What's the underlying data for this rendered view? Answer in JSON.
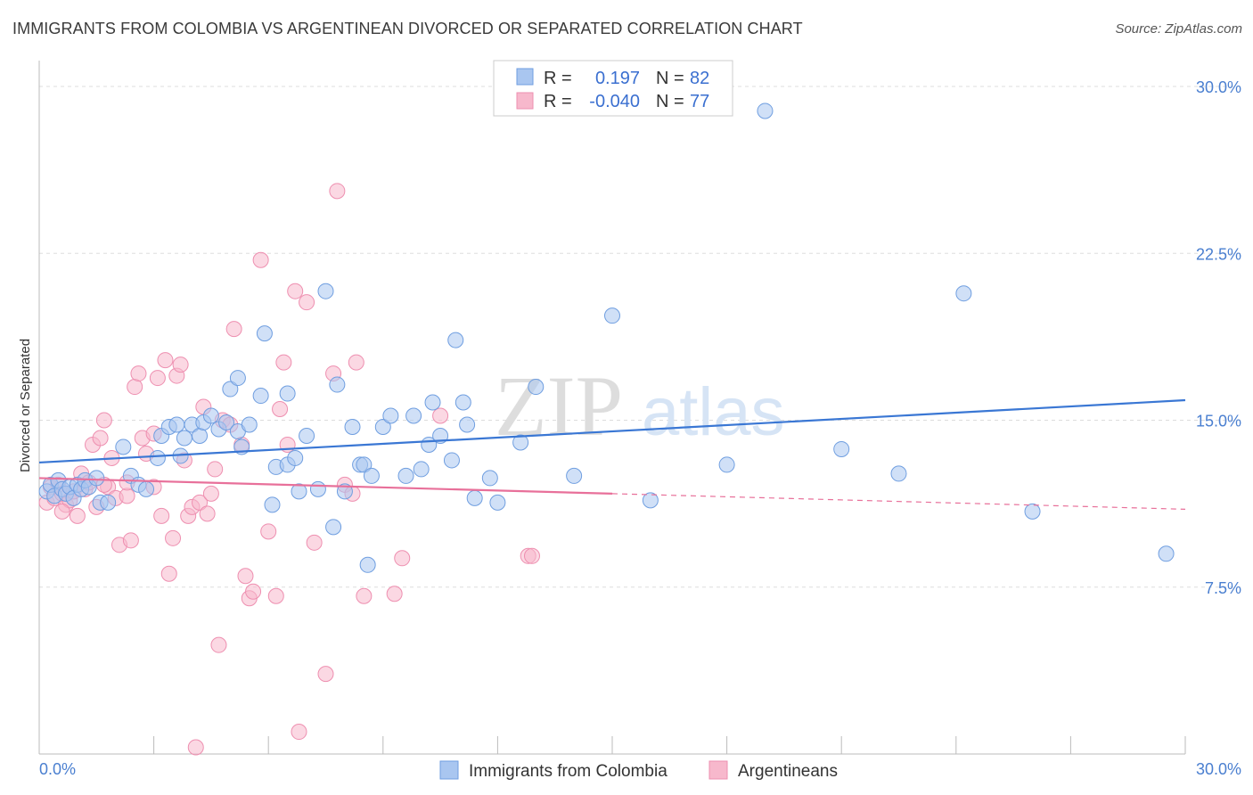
{
  "title": "IMMIGRANTS FROM COLOMBIA VS ARGENTINEAN DIVORCED OR SEPARATED CORRELATION CHART",
  "source": "Source: ZipAtlas.com",
  "watermark": "ZIPatlas",
  "colors": {
    "blue_fill": "#a9c6f0",
    "blue_stroke": "#6f9ee0",
    "blue_line": "#3a77d4",
    "pink_fill": "#f7b8cc",
    "pink_stroke": "#ee8fb0",
    "pink_line": "#e8709a",
    "tick_text": "#4a7fd0",
    "grid": "#dddddd"
  },
  "legend": {
    "r_label": "R =",
    "n_label": "N =",
    "rows": [
      {
        "series": "blue",
        "r": "0.197",
        "n": "82"
      },
      {
        "series": "pink",
        "r": "-0.040",
        "n": "77"
      }
    ]
  },
  "chart_data": {
    "type": "scatter",
    "xlabel": "",
    "ylabel": "Divorced or Separated",
    "xlim": [
      0,
      30
    ],
    "ylim": [
      0,
      30
    ],
    "y_ticks": [
      7.5,
      15.0,
      22.5,
      30.0
    ],
    "y_tick_labels": [
      "7.5%",
      "15.0%",
      "22.5%",
      "30.0%"
    ],
    "x_tick_labels": [
      "0.0%",
      "30.0%"
    ],
    "grid": true,
    "legend_position": "top-center",
    "series": [
      {
        "name": "Immigrants from Colombia",
        "color": "#a9c6f0",
        "trend": {
          "x": [
            0,
            30
          ],
          "y": [
            13.1,
            15.9
          ],
          "extrapolate_from": null
        },
        "points": [
          [
            0.2,
            11.8
          ],
          [
            0.3,
            12.1
          ],
          [
            0.4,
            11.6
          ],
          [
            0.5,
            12.3
          ],
          [
            0.6,
            11.9
          ],
          [
            0.7,
            11.7
          ],
          [
            0.8,
            12.0
          ],
          [
            0.9,
            11.5
          ],
          [
            1.0,
            12.1
          ],
          [
            1.1,
            11.9
          ],
          [
            1.2,
            12.3
          ],
          [
            1.3,
            12.0
          ],
          [
            1.5,
            12.4
          ],
          [
            1.6,
            11.3
          ],
          [
            1.8,
            11.3
          ],
          [
            2.2,
            13.8
          ],
          [
            2.4,
            12.5
          ],
          [
            2.6,
            12.1
          ],
          [
            2.8,
            11.9
          ],
          [
            3.1,
            13.3
          ],
          [
            3.2,
            14.3
          ],
          [
            3.4,
            14.7
          ],
          [
            3.6,
            14.8
          ],
          [
            3.7,
            13.4
          ],
          [
            3.8,
            14.2
          ],
          [
            4.0,
            14.8
          ],
          [
            4.2,
            14.3
          ],
          [
            4.3,
            14.9
          ],
          [
            4.5,
            15.2
          ],
          [
            4.7,
            14.6
          ],
          [
            4.9,
            14.9
          ],
          [
            5.0,
            16.4
          ],
          [
            5.2,
            14.5
          ],
          [
            5.2,
            16.9
          ],
          [
            5.3,
            13.8
          ],
          [
            5.5,
            14.8
          ],
          [
            5.8,
            16.1
          ],
          [
            5.9,
            18.9
          ],
          [
            6.1,
            11.2
          ],
          [
            6.2,
            12.9
          ],
          [
            6.5,
            13.0
          ],
          [
            6.5,
            16.2
          ],
          [
            6.7,
            13.3
          ],
          [
            6.8,
            11.8
          ],
          [
            7.0,
            14.3
          ],
          [
            7.3,
            11.9
          ],
          [
            7.5,
            20.8
          ],
          [
            7.7,
            10.2
          ],
          [
            7.8,
            16.6
          ],
          [
            8.0,
            11.8
          ],
          [
            8.2,
            14.7
          ],
          [
            8.4,
            13.0
          ],
          [
            8.5,
            13.0
          ],
          [
            8.6,
            8.5
          ],
          [
            8.7,
            12.5
          ],
          [
            9.0,
            14.7
          ],
          [
            9.2,
            15.2
          ],
          [
            9.6,
            12.5
          ],
          [
            9.8,
            15.2
          ],
          [
            10.0,
            12.8
          ],
          [
            10.2,
            13.9
          ],
          [
            10.3,
            15.8
          ],
          [
            10.5,
            14.3
          ],
          [
            10.8,
            13.2
          ],
          [
            10.9,
            18.6
          ],
          [
            11.1,
            15.8
          ],
          [
            11.2,
            14.8
          ],
          [
            11.4,
            11.5
          ],
          [
            11.8,
            12.4
          ],
          [
            12.0,
            11.3
          ],
          [
            12.6,
            14.0
          ],
          [
            13.0,
            16.5
          ],
          [
            14.0,
            12.5
          ],
          [
            15.0,
            19.7
          ],
          [
            16.0,
            11.4
          ],
          [
            18.0,
            13.0
          ],
          [
            19.0,
            28.9
          ],
          [
            21.0,
            13.7
          ],
          [
            22.5,
            12.6
          ],
          [
            24.2,
            20.7
          ],
          [
            26.0,
            10.9
          ],
          [
            29.5,
            9.0
          ]
        ]
      },
      {
        "name": "Argentineans",
        "color": "#f7b8cc",
        "trend": {
          "x": [
            0,
            15
          ],
          "y": [
            12.4,
            11.7
          ],
          "extrapolate_from": 15
        },
        "points": [
          [
            0.2,
            11.3
          ],
          [
            0.3,
            12.0
          ],
          [
            0.4,
            11.5
          ],
          [
            0.5,
            12.1
          ],
          [
            0.6,
            11.7
          ],
          [
            0.7,
            11.2
          ],
          [
            0.8,
            11.4
          ],
          [
            0.9,
            11.8
          ],
          [
            1.0,
            10.7
          ],
          [
            1.1,
            12.6
          ],
          [
            1.2,
            11.9
          ],
          [
            1.3,
            12.2
          ],
          [
            1.4,
            13.9
          ],
          [
            1.5,
            11.1
          ],
          [
            1.6,
            14.2
          ],
          [
            1.7,
            15.0
          ],
          [
            1.8,
            12.0
          ],
          [
            1.9,
            13.3
          ],
          [
            2.0,
            11.5
          ],
          [
            2.1,
            9.4
          ],
          [
            2.3,
            11.6
          ],
          [
            2.4,
            9.6
          ],
          [
            2.5,
            16.5
          ],
          [
            2.6,
            17.1
          ],
          [
            2.7,
            14.2
          ],
          [
            2.8,
            13.5
          ],
          [
            3.0,
            14.4
          ],
          [
            3.1,
            16.9
          ],
          [
            3.2,
            10.7
          ],
          [
            3.3,
            17.7
          ],
          [
            3.4,
            8.1
          ],
          [
            3.5,
            9.7
          ],
          [
            3.6,
            17.0
          ],
          [
            3.7,
            17.5
          ],
          [
            3.8,
            13.2
          ],
          [
            3.9,
            10.7
          ],
          [
            4.0,
            11.1
          ],
          [
            4.1,
            0.3
          ],
          [
            4.2,
            11.3
          ],
          [
            4.3,
            15.6
          ],
          [
            4.4,
            10.8
          ],
          [
            4.5,
            11.7
          ],
          [
            4.6,
            12.8
          ],
          [
            4.7,
            4.9
          ],
          [
            4.8,
            15.0
          ],
          [
            5.0,
            14.8
          ],
          [
            5.1,
            19.1
          ],
          [
            5.3,
            13.9
          ],
          [
            5.4,
            8.0
          ],
          [
            5.5,
            7.0
          ],
          [
            5.6,
            7.3
          ],
          [
            5.8,
            22.2
          ],
          [
            6.0,
            10.0
          ],
          [
            6.2,
            7.1
          ],
          [
            6.3,
            15.5
          ],
          [
            6.4,
            17.6
          ],
          [
            6.5,
            13.9
          ],
          [
            6.7,
            20.8
          ],
          [
            6.8,
            1.0
          ],
          [
            7.0,
            20.3
          ],
          [
            7.2,
            9.5
          ],
          [
            7.5,
            3.6
          ],
          [
            7.7,
            17.1
          ],
          [
            7.8,
            25.3
          ],
          [
            8.0,
            12.1
          ],
          [
            8.2,
            11.7
          ],
          [
            8.3,
            17.6
          ],
          [
            8.5,
            7.1
          ],
          [
            9.3,
            7.2
          ],
          [
            9.5,
            8.8
          ],
          [
            10.5,
            15.2
          ],
          [
            12.8,
            8.9
          ],
          [
            12.9,
            8.9
          ],
          [
            2.3,
            12.2
          ],
          [
            1.7,
            12.1
          ],
          [
            3.0,
            12.0
          ],
          [
            0.6,
            10.9
          ]
        ]
      }
    ]
  },
  "bottom_legend": [
    {
      "series": "blue",
      "label": "Immigrants from Colombia"
    },
    {
      "series": "pink",
      "label": "Argentineans"
    }
  ]
}
